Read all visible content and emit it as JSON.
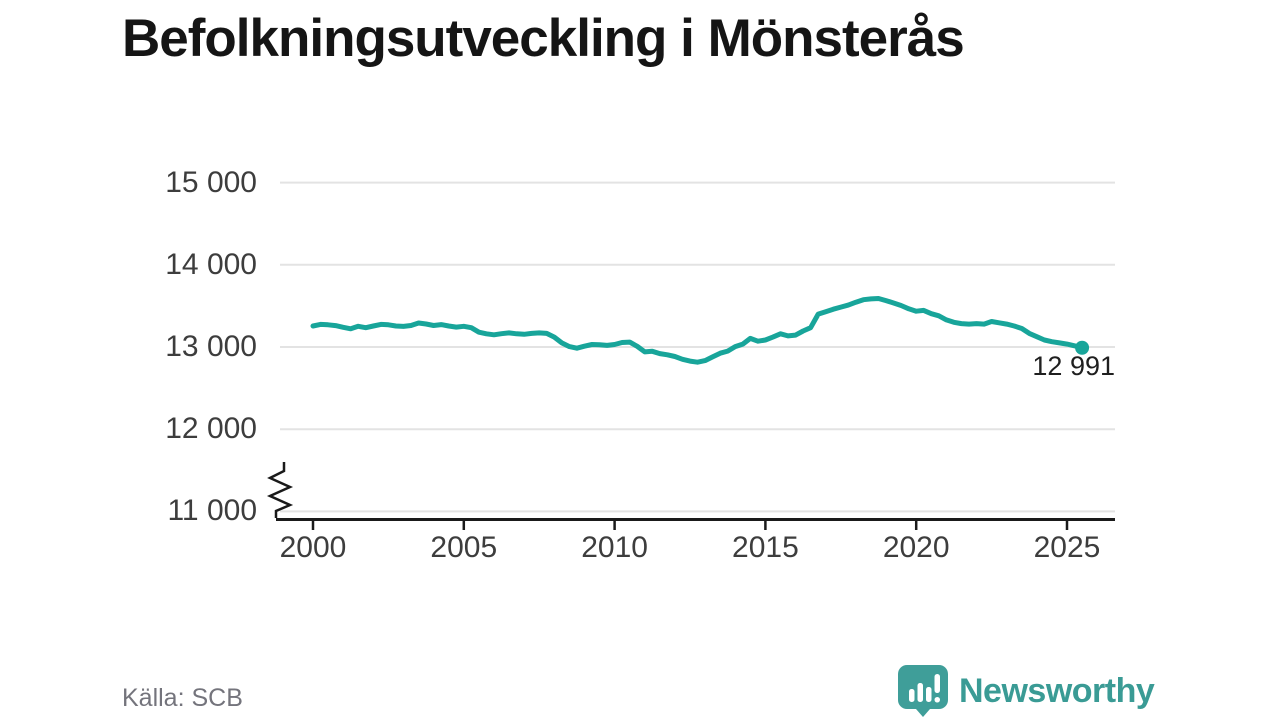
{
  "title": "Befolkningsutveckling i Mönsterås",
  "source": "Källa: SCB",
  "brand": {
    "name": "Newsworthy",
    "icon": "speech-bubble-bar-chart-icon"
  },
  "colors": {
    "line": "#18a59a",
    "marker": "#18a59a",
    "grid": "#e3e3e3",
    "axis": "#1a1a1a",
    "tick_label": "#3d3d3d",
    "title": "#151515",
    "annotation": "#1f1f1f",
    "source": "#74747c",
    "brand": "#3a9b95"
  },
  "chart_data": {
    "type": "line",
    "title": "Befolkningsutveckling i Mönsterås",
    "xlabel": "",
    "ylabel": "",
    "legend": "none",
    "grid": "horizontal",
    "axis_break_bottom": true,
    "ylim": [
      11000,
      15000
    ],
    "xlim": [
      2000,
      2025.5
    ],
    "y_ticks": [
      {
        "value": 15000,
        "label": "15 000"
      },
      {
        "value": 14000,
        "label": "14 000"
      },
      {
        "value": 13000,
        "label": "13 000"
      },
      {
        "value": 12000,
        "label": "12 000"
      },
      {
        "value": 11000,
        "label": "11 000"
      }
    ],
    "x_ticks": [
      {
        "value": 2000,
        "label": "2000"
      },
      {
        "value": 2005,
        "label": "2005"
      },
      {
        "value": 2010,
        "label": "2010"
      },
      {
        "value": 2015,
        "label": "2015"
      },
      {
        "value": 2020,
        "label": "2020"
      },
      {
        "value": 2025,
        "label": "2025"
      }
    ],
    "annotation": {
      "x": 2025.5,
      "value": 12991,
      "label": "12 991"
    },
    "series": [
      {
        "name": "Befolkning",
        "x": [
          2000.0,
          2000.25,
          2000.5,
          2000.75,
          2001.0,
          2001.25,
          2001.5,
          2001.75,
          2002.0,
          2002.25,
          2002.5,
          2002.75,
          2003.0,
          2003.25,
          2003.5,
          2003.75,
          2004.0,
          2004.25,
          2004.5,
          2004.75,
          2005.0,
          2005.25,
          2005.5,
          2005.75,
          2006.0,
          2006.25,
          2006.5,
          2006.75,
          2007.0,
          2007.25,
          2007.5,
          2007.75,
          2008.0,
          2008.25,
          2008.5,
          2008.75,
          2009.0,
          2009.25,
          2009.5,
          2009.75,
          2010.0,
          2010.25,
          2010.5,
          2010.75,
          2011.0,
          2011.25,
          2011.5,
          2011.75,
          2012.0,
          2012.25,
          2012.5,
          2012.75,
          2013.0,
          2013.25,
          2013.5,
          2013.75,
          2014.0,
          2014.25,
          2014.5,
          2014.75,
          2015.0,
          2015.25,
          2015.5,
          2015.75,
          2016.0,
          2016.25,
          2016.5,
          2016.75,
          2017.0,
          2017.25,
          2017.5,
          2017.75,
          2018.0,
          2018.25,
          2018.5,
          2018.75,
          2019.0,
          2019.25,
          2019.5,
          2019.75,
          2020.0,
          2020.25,
          2020.5,
          2020.75,
          2021.0,
          2021.25,
          2021.5,
          2021.75,
          2022.0,
          2022.25,
          2022.5,
          2022.75,
          2023.0,
          2023.25,
          2023.5,
          2023.75,
          2024.0,
          2024.25,
          2024.5,
          2024.75,
          2025.0,
          2025.25,
          2025.5
        ],
        "values": [
          13255,
          13275,
          13270,
          13260,
          13240,
          13222,
          13252,
          13235,
          13255,
          13275,
          13270,
          13255,
          13250,
          13262,
          13292,
          13280,
          13262,
          13272,
          13255,
          13242,
          13252,
          13235,
          13180,
          13160,
          13148,
          13162,
          13172,
          13160,
          13155,
          13165,
          13172,
          13165,
          13120,
          13050,
          13005,
          12985,
          13010,
          13030,
          13028,
          13020,
          13030,
          13055,
          13060,
          13008,
          12940,
          12948,
          12920,
          12905,
          12885,
          12850,
          12828,
          12815,
          12835,
          12880,
          12925,
          12950,
          13005,
          13035,
          13105,
          13070,
          13085,
          13120,
          13160,
          13135,
          13145,
          13195,
          13235,
          13400,
          13430,
          13460,
          13485,
          13510,
          13545,
          13575,
          13585,
          13590,
          13565,
          13535,
          13505,
          13465,
          13435,
          13445,
          13405,
          13380,
          13330,
          13300,
          13285,
          13278,
          13285,
          13278,
          13310,
          13295,
          13278,
          13255,
          13225,
          13165,
          13125,
          13085,
          13065,
          13050,
          13035,
          13015,
          12991
        ]
      }
    ]
  }
}
